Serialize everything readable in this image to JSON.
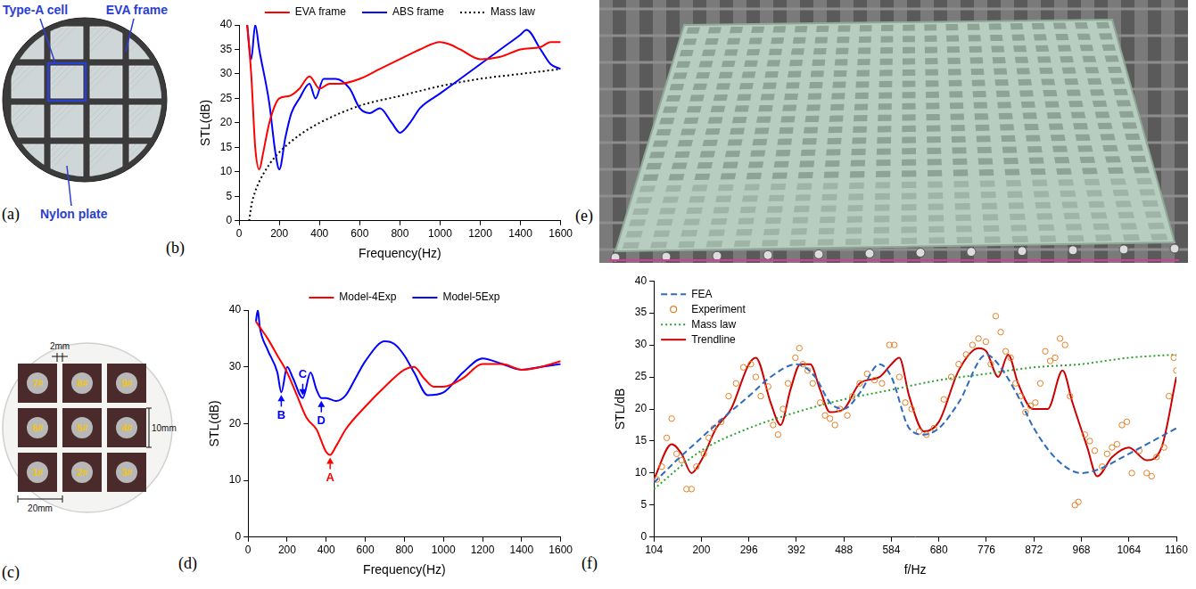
{
  "chart_data": [
    {
      "panel": "(b)",
      "type": "line",
      "x_label": "Frequency(Hz)",
      "y_label": "STL(dB)",
      "xlim": [
        0,
        1600
      ],
      "xticks": [
        0,
        200,
        400,
        600,
        800,
        1000,
        1200,
        1400,
        1600
      ],
      "ylim": [
        0,
        40
      ],
      "yticks": [
        0,
        5,
        10,
        15,
        20,
        25,
        30,
        35,
        40
      ],
      "grid": false,
      "legend": "top",
      "series": [
        {
          "name": "EVA frame",
          "color": "#ff0000",
          "line_style": "solid",
          "x": [
            40,
            60,
            80,
            100,
            120,
            150,
            200,
            250,
            300,
            350,
            400,
            450,
            500,
            600,
            700,
            800,
            900,
            1000,
            1050,
            1100,
            1200,
            1300,
            1400,
            1500,
            1550,
            1600
          ],
          "values": [
            40,
            30,
            15,
            10.5,
            14,
            20,
            25,
            25.5,
            27,
            29.5,
            27,
            28,
            28,
            29,
            31,
            33,
            35,
            36.5,
            36,
            35,
            33,
            33.5,
            35,
            35.5,
            36.5,
            36.5
          ]
        },
        {
          "name": "ABS frame",
          "color": "#0000ff",
          "line_style": "solid",
          "x": [
            40,
            60,
            80,
            100,
            150,
            180,
            200,
            230,
            260,
            300,
            350,
            380,
            420,
            480,
            550,
            600,
            650,
            700,
            760,
            800,
            850,
            900,
            1000,
            1100,
            1200,
            1300,
            1400,
            1430,
            1500,
            1550,
            1600
          ],
          "values": [
            40,
            33,
            40,
            35,
            24,
            14,
            10.5,
            17,
            22,
            25,
            28,
            25,
            29,
            29,
            27,
            23,
            22,
            23,
            20,
            18,
            20,
            23,
            26,
            29,
            32,
            35,
            38,
            39,
            35,
            32,
            31
          ]
        },
        {
          "name": "Mass law",
          "color": "#000000",
          "line_style": "dotted",
          "x": [
            50,
            60,
            80,
            100,
            150,
            200,
            300,
            400,
            600,
            800,
            1000,
            1200,
            1400,
            1600
          ],
          "values": [
            0,
            3,
            6,
            8,
            11.5,
            14,
            17.5,
            20,
            23.5,
            25.5,
            27.5,
            29,
            30,
            31
          ]
        }
      ]
    },
    {
      "panel": "(d)",
      "type": "line",
      "x_label": "Frequency(Hz)",
      "y_label": "STL(dB)",
      "xlim": [
        0,
        1600
      ],
      "xticks": [
        0,
        200,
        400,
        600,
        800,
        1000,
        1200,
        1400,
        1600
      ],
      "ylim": [
        0,
        40
      ],
      "yticks": [
        0,
        10,
        20,
        30,
        40
      ],
      "grid": false,
      "legend": "top",
      "series": [
        {
          "name": "Model-4Exp",
          "color": "#ff0000",
          "line_style": "solid",
          "x": [
            40,
            60,
            100,
            150,
            200,
            250,
            300,
            350,
            400,
            420,
            450,
            500,
            600,
            700,
            800,
            850,
            900,
            950,
            1000,
            1100,
            1200,
            1300,
            1400,
            1500,
            1600
          ],
          "values": [
            38,
            37,
            35,
            32,
            29,
            25,
            21,
            19,
            15,
            14.5,
            16,
            19,
            23,
            26.5,
            29.5,
            30,
            28,
            26.5,
            26.5,
            28,
            30.5,
            30.5,
            29.5,
            30,
            31
          ]
        },
        {
          "name": "Model-5Exp",
          "color": "#0000ff",
          "line_style": "solid",
          "x": [
            40,
            50,
            60,
            100,
            150,
            170,
            200,
            230,
            280,
            320,
            350,
            375,
            400,
            450,
            500,
            550,
            600,
            700,
            750,
            800,
            850,
            920,
            1000,
            1100,
            1200,
            1300,
            1400,
            1500,
            1600
          ],
          "values": [
            38,
            40,
            37,
            33,
            29,
            25.5,
            30,
            28,
            24.5,
            29,
            26,
            24.5,
            24.5,
            24,
            25,
            28,
            31,
            34.5,
            34,
            32,
            29,
            25,
            25.5,
            29,
            31.5,
            30.5,
            29.5,
            30,
            30.5
          ]
        }
      ],
      "annotations": [
        {
          "text": "A",
          "x": 420,
          "y": 14.5,
          "color": "#ff0000"
        },
        {
          "text": "B",
          "x": 170,
          "y": 25.5,
          "color": "#0000ff"
        },
        {
          "text": "C",
          "x": 280,
          "y": 24.5,
          "color": "#0000ff"
        },
        {
          "text": "D",
          "x": 375,
          "y": 24.5,
          "color": "#0000ff"
        }
      ]
    },
    {
      "panel": "(f)",
      "type": "line",
      "x_label": "f/Hz",
      "y_label": "STL/dB",
      "xlim": [
        104,
        1160
      ],
      "xticks": [
        104,
        200,
        296,
        392,
        488,
        584,
        680,
        776,
        872,
        968,
        1064,
        1160
      ],
      "ylim": [
        0,
        40
      ],
      "yticks": [
        0,
        5,
        10,
        15,
        20,
        25,
        30,
        35,
        40
      ],
      "grid": false,
      "legend": "upper left",
      "series": [
        {
          "name": "FEA",
          "color": "#2e6bbd",
          "line_style": "dashed",
          "x": [
            104,
            150,
            200,
            250,
            296,
            340,
            392,
            430,
            460,
            488,
            520,
            560,
            584,
            620,
            650,
            680,
            720,
            776,
            800,
            840,
            872,
            920,
            968,
            1000,
            1064,
            1100,
            1160
          ],
          "values": [
            8.5,
            12,
            15.5,
            19,
            22,
            25,
            27,
            25,
            21,
            20,
            22.5,
            27,
            25,
            17,
            16,
            17,
            21,
            28.5,
            27,
            22,
            17,
            12,
            10,
            10.5,
            13,
            14.5,
            17
          ]
        },
        {
          "name": "Experiment",
          "color": "#e67e22",
          "type": "scatter",
          "marker": "circle",
          "line_style": "none",
          "x": [
            110,
            120,
            130,
            140,
            150,
            160,
            170,
            180,
            190,
            205,
            215,
            225,
            240,
            255,
            270,
            285,
            300,
            310,
            320,
            335,
            345,
            355,
            365,
            375,
            390,
            398,
            405,
            415,
            425,
            440,
            450,
            460,
            470,
            480,
            495,
            505,
            520,
            535,
            550,
            565,
            580,
            590,
            600,
            612,
            625,
            640,
            655,
            670,
            690,
            705,
            720,
            735,
            748,
            760,
            775,
            785,
            795,
            805,
            815,
            825,
            835,
            845,
            855,
            865,
            875,
            885,
            895,
            905,
            915,
            925,
            935,
            945,
            955,
            962,
            975,
            985,
            995,
            1010,
            1020,
            1030,
            1040,
            1050,
            1060,
            1070,
            1085,
            1100,
            1110,
            1120,
            1135,
            1145,
            1155,
            1160
          ],
          "values": [
            9,
            11,
            15.5,
            18.5,
            13,
            12,
            7.5,
            7.5,
            11,
            13,
            15.5,
            17,
            18,
            22,
            24,
            26.5,
            27,
            25,
            22,
            23.5,
            17.5,
            16,
            20,
            24,
            28,
            29.5,
            27,
            26,
            24,
            21,
            19,
            18.5,
            17.5,
            20,
            19,
            22,
            24,
            25.5,
            24.5,
            24,
            30,
            30,
            25,
            21,
            20,
            16.5,
            16,
            17,
            21.5,
            25,
            27,
            28.5,
            30,
            31,
            30.5,
            27,
            34.5,
            32,
            29,
            28,
            24,
            22,
            19.5,
            20.5,
            21,
            24,
            29,
            27.5,
            28,
            31,
            30,
            22,
            5,
            5.5,
            16,
            15,
            13.5,
            11,
            13,
            14,
            14.5,
            17.5,
            18,
            10,
            13.5,
            10,
            9.5,
            12.5,
            14,
            22,
            28,
            26
          ]
        },
        {
          "name": "Mass law",
          "color": "#2ca02c",
          "line_style": "dotted",
          "x": [
            104,
            200,
            296,
            392,
            488,
            584,
            680,
            776,
            872,
            968,
            1064,
            1160
          ],
          "values": [
            7.5,
            13.5,
            17,
            19.5,
            21.5,
            23,
            24.5,
            25.5,
            26.5,
            27,
            28,
            28.5
          ]
        },
        {
          "name": "Trendline",
          "color": "#cc0000",
          "line_style": "solid",
          "x": [
            104,
            140,
            160,
            180,
            200,
            230,
            260,
            296,
            310,
            340,
            360,
            380,
            400,
            420,
            440,
            460,
            488,
            520,
            560,
            584,
            600,
            620,
            650,
            680,
            720,
            760,
            776,
            800,
            820,
            840,
            870,
            900,
            930,
            950,
            980,
            1000,
            1030,
            1064,
            1100,
            1130,
            1160
          ],
          "values": [
            9,
            14.5,
            13,
            10,
            12,
            17,
            20,
            27,
            28,
            21,
            17.5,
            23,
            27,
            27,
            23,
            19.5,
            20,
            24,
            25,
            27,
            28,
            22,
            16.5,
            18,
            26,
            29.5,
            29,
            25,
            28.5,
            24,
            20,
            20,
            26,
            21,
            14,
            9.5,
            12.5,
            14,
            12,
            14,
            25
          ]
        }
      ]
    }
  ],
  "photos": [
    {
      "panel": "(a)",
      "callouts": [
        "Type-A cell",
        "EVA frame",
        "Nylon plate"
      ]
    },
    {
      "panel": "(c)",
      "cells": [
        "7#",
        "8#",
        "9#",
        "6#",
        "5#",
        "4#",
        "1#",
        "2#",
        "3#"
      ],
      "dimensions": [
        "2mm",
        "10mm",
        "20mm"
      ]
    },
    {
      "panel": "(e)"
    }
  ]
}
